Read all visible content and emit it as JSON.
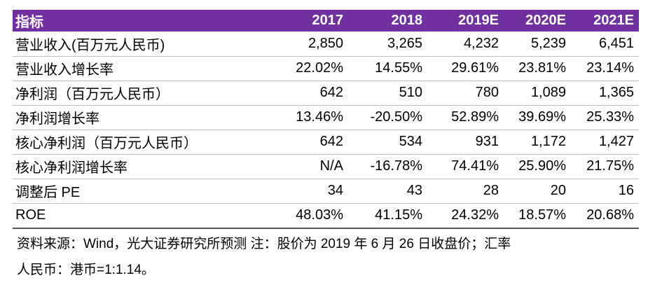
{
  "table": {
    "header": [
      "指标",
      "2017",
      "2018",
      "2019E",
      "2020E",
      "2021E"
    ],
    "rows": [
      [
        "营业收入(百万元人民币)",
        "2,850",
        "3,265",
        "4,232",
        "5,239",
        "6,451"
      ],
      [
        "营业收入增长率",
        "22.02%",
        "14.55%",
        "29.61%",
        "23.81%",
        "23.14%"
      ],
      [
        "净利润（百万元人民币）",
        "642",
        "510",
        "780",
        "1,089",
        "1,365"
      ],
      [
        "净利润增长率",
        "13.46%",
        "-20.50%",
        "52.89%",
        "39.69%",
        "25.33%"
      ],
      [
        "核心净利润（百万元人民币）",
        "642",
        "534",
        "931",
        "1,172",
        "1,427"
      ],
      [
        "核心净利润增长率",
        "N/A",
        "-16.78%",
        "74.41%",
        "25.90%",
        "21.75%"
      ],
      [
        "调整后 PE",
        "34",
        "43",
        "28",
        "20",
        "16"
      ],
      [
        "ROE",
        "48.03%",
        "41.15%",
        "24.32%",
        "18.57%",
        "20.68%"
      ]
    ]
  },
  "note": [
    "资料来源：Wind，光大证券研究所预测  注：股价为 2019 年 6 月 26 日收盘价；汇率",
    "人民币：港币=1:1.14。"
  ]
}
